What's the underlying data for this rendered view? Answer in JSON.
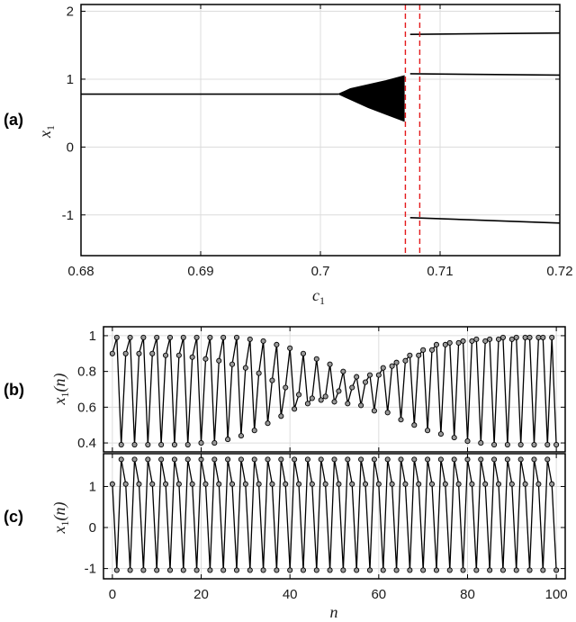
{
  "chart_data": [
    {
      "panel_label": "(a)",
      "type": "scatter",
      "xlabel_base": "c",
      "xlabel_sub": "1",
      "ylabel_base": "x",
      "ylabel_sub": "1",
      "xlim": [
        0.68,
        0.72
      ],
      "ylim": [
        -1.6,
        2.1
      ],
      "xticks": [
        0.68,
        0.69,
        0.7,
        0.71,
        0.72
      ],
      "xtick_labels": [
        "0.68",
        "0.69",
        "0.7",
        "0.71",
        "0.72"
      ],
      "yticks": [
        -1,
        0,
        1,
        2
      ],
      "ytick_labels": [
        "-1",
        "0",
        "1",
        "2"
      ],
      "grid": true,
      "series": [
        {
          "kind": "line",
          "x": [
            0.68,
            0.7015
          ],
          "y": [
            0.78,
            0.78
          ]
        },
        {
          "kind": "band",
          "x": [
            0.7015,
            0.7025,
            0.704,
            0.7055,
            0.707
          ],
          "y_low": [
            0.78,
            0.7,
            0.58,
            0.48,
            0.38
          ],
          "y_high": [
            0.78,
            0.86,
            0.92,
            0.98,
            1.05
          ]
        },
        {
          "kind": "line",
          "x": [
            0.7075,
            0.72
          ],
          "y": [
            1.66,
            1.68
          ]
        },
        {
          "kind": "line",
          "x": [
            0.7075,
            0.72
          ],
          "y": [
            1.08,
            1.06
          ]
        },
        {
          "kind": "line",
          "x": [
            0.7075,
            0.72
          ],
          "y": [
            -1.04,
            -1.12
          ]
        }
      ],
      "markers": {
        "kind": "vline",
        "style": "dashed",
        "color": "#e41a1c",
        "x": [
          0.7071,
          0.7083
        ]
      }
    },
    {
      "panel_label": "(b)",
      "type": "line",
      "ylabel": "x₁(n)",
      "ylabel_base": "x",
      "ylabel_sub": "1",
      "ylabel_arg": "(n)",
      "xlim": [
        -2,
        102
      ],
      "ylim": [
        0.35,
        1.05
      ],
      "xticks": [
        0,
        20,
        40,
        60,
        80,
        100
      ],
      "yticks": [
        0.4,
        0.6,
        0.8,
        1
      ],
      "ytick_labels": [
        "0.4",
        "0.6",
        "0.8",
        "1"
      ],
      "marker": "circle",
      "grid": true,
      "x": [
        0,
        1,
        2,
        3,
        4,
        5,
        6,
        7,
        8,
        9,
        10,
        11,
        12,
        13,
        14,
        15,
        16,
        17,
        18,
        19,
        20,
        21,
        22,
        23,
        24,
        25,
        26,
        27,
        28,
        29,
        30,
        31,
        32,
        33,
        34,
        35,
        36,
        37,
        38,
        39,
        40,
        41,
        42,
        43,
        44,
        45,
        46,
        47,
        48,
        49,
        50,
        51,
        52,
        53,
        54,
        55,
        56,
        57,
        58,
        59,
        60,
        61,
        62,
        63,
        64,
        65,
        66,
        67,
        68,
        69,
        70,
        71,
        72,
        73,
        74,
        75,
        76,
        77,
        78,
        79,
        80,
        81,
        82,
        83,
        84,
        85,
        86,
        87,
        88,
        89,
        90,
        91,
        92,
        93,
        94,
        95,
        96,
        97,
        98,
        99,
        100
      ],
      "y": [
        0.9,
        0.99,
        0.39,
        0.9,
        0.99,
        0.39,
        0.9,
        0.99,
        0.39,
        0.9,
        0.99,
        0.39,
        0.89,
        0.99,
        0.39,
        0.89,
        0.99,
        0.39,
        0.88,
        0.99,
        0.4,
        0.87,
        0.99,
        0.4,
        0.86,
        0.99,
        0.42,
        0.84,
        0.99,
        0.44,
        0.82,
        0.98,
        0.47,
        0.79,
        0.97,
        0.51,
        0.75,
        0.95,
        0.55,
        0.71,
        0.93,
        0.59,
        0.67,
        0.9,
        0.62,
        0.65,
        0.87,
        0.64,
        0.66,
        0.84,
        0.63,
        0.69,
        0.8,
        0.62,
        0.71,
        0.77,
        0.61,
        0.74,
        0.78,
        0.58,
        0.78,
        0.82,
        0.57,
        0.83,
        0.85,
        0.53,
        0.86,
        0.89,
        0.5,
        0.89,
        0.92,
        0.47,
        0.92,
        0.95,
        0.45,
        0.95,
        0.96,
        0.43,
        0.96,
        0.97,
        0.41,
        0.97,
        0.98,
        0.4,
        0.97,
        0.98,
        0.39,
        0.98,
        0.99,
        0.39,
        0.98,
        0.99,
        0.39,
        0.99,
        0.99,
        0.39,
        0.99,
        0.99,
        0.39,
        0.99,
        0.39
      ]
    },
    {
      "panel_label": "(c)",
      "type": "line",
      "ylabel": "x₁(n)",
      "ylabel_base": "x",
      "ylabel_sub": "1",
      "ylabel_arg": "(n)",
      "xlabel": "n",
      "xlim": [
        -2,
        102
      ],
      "ylim": [
        -1.25,
        1.8
      ],
      "xticks": [
        0,
        20,
        40,
        60,
        80,
        100
      ],
      "xtick_labels": [
        "0",
        "20",
        "40",
        "60",
        "80",
        "100"
      ],
      "yticks": [
        -1,
        0,
        1
      ],
      "ytick_labels": [
        "-1",
        "0",
        "1"
      ],
      "marker": "circle",
      "grid": true,
      "cycle": [
        1.06,
        -1.04,
        1.66
      ],
      "x": [
        0,
        1,
        2,
        3,
        4,
        5,
        6,
        7,
        8,
        9,
        10,
        11,
        12,
        13,
        14,
        15,
        16,
        17,
        18,
        19,
        20,
        21,
        22,
        23,
        24,
        25,
        26,
        27,
        28,
        29,
        30,
        31,
        32,
        33,
        34,
        35,
        36,
        37,
        38,
        39,
        40,
        41,
        42,
        43,
        44,
        45,
        46,
        47,
        48,
        49,
        50,
        51,
        52,
        53,
        54,
        55,
        56,
        57,
        58,
        59,
        60,
        61,
        62,
        63,
        64,
        65,
        66,
        67,
        68,
        69,
        70,
        71,
        72,
        73,
        74,
        75,
        76,
        77,
        78,
        79,
        80,
        81,
        82,
        83,
        84,
        85,
        86,
        87,
        88,
        89,
        90,
        91,
        92,
        93,
        94,
        95,
        96,
        97,
        98,
        99,
        100
      ]
    }
  ]
}
